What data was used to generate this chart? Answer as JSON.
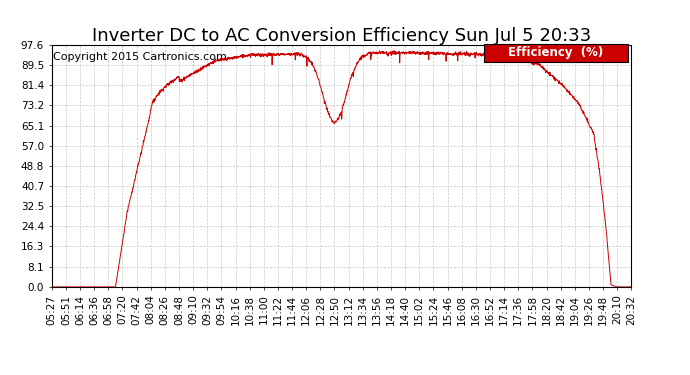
{
  "title": "Inverter DC to AC Conversion Efficiency Sun Jul 5 20:33",
  "copyright": "Copyright 2015 Cartronics.com",
  "legend_label": "Efficiency  (%)",
  "legend_bg": "#cc0000",
  "legend_fg": "#ffffff",
  "line_color": "#cc0000",
  "bg_color": "#ffffff",
  "grid_color": "#c8c8c8",
  "yticks": [
    0.0,
    8.1,
    16.3,
    24.4,
    32.5,
    40.7,
    48.8,
    57.0,
    65.1,
    73.2,
    81.4,
    89.5,
    97.6
  ],
  "ymin": 0.0,
  "ymax": 97.6,
  "xtick_labels": [
    "05:27",
    "05:51",
    "06:14",
    "06:36",
    "06:58",
    "07:20",
    "07:42",
    "08:04",
    "08:26",
    "08:48",
    "09:10",
    "09:32",
    "09:54",
    "10:16",
    "10:38",
    "11:00",
    "11:22",
    "11:44",
    "12:06",
    "12:28",
    "12:50",
    "13:12",
    "13:34",
    "13:56",
    "14:18",
    "14:40",
    "15:02",
    "15:24",
    "15:46",
    "16:08",
    "16:30",
    "16:52",
    "17:14",
    "17:36",
    "17:58",
    "18:20",
    "18:42",
    "19:04",
    "19:26",
    "19:48",
    "20:10",
    "20:32"
  ],
  "title_fontsize": 13,
  "copyright_fontsize": 8,
  "tick_fontsize": 7.5,
  "legend_fontsize": 8.5
}
